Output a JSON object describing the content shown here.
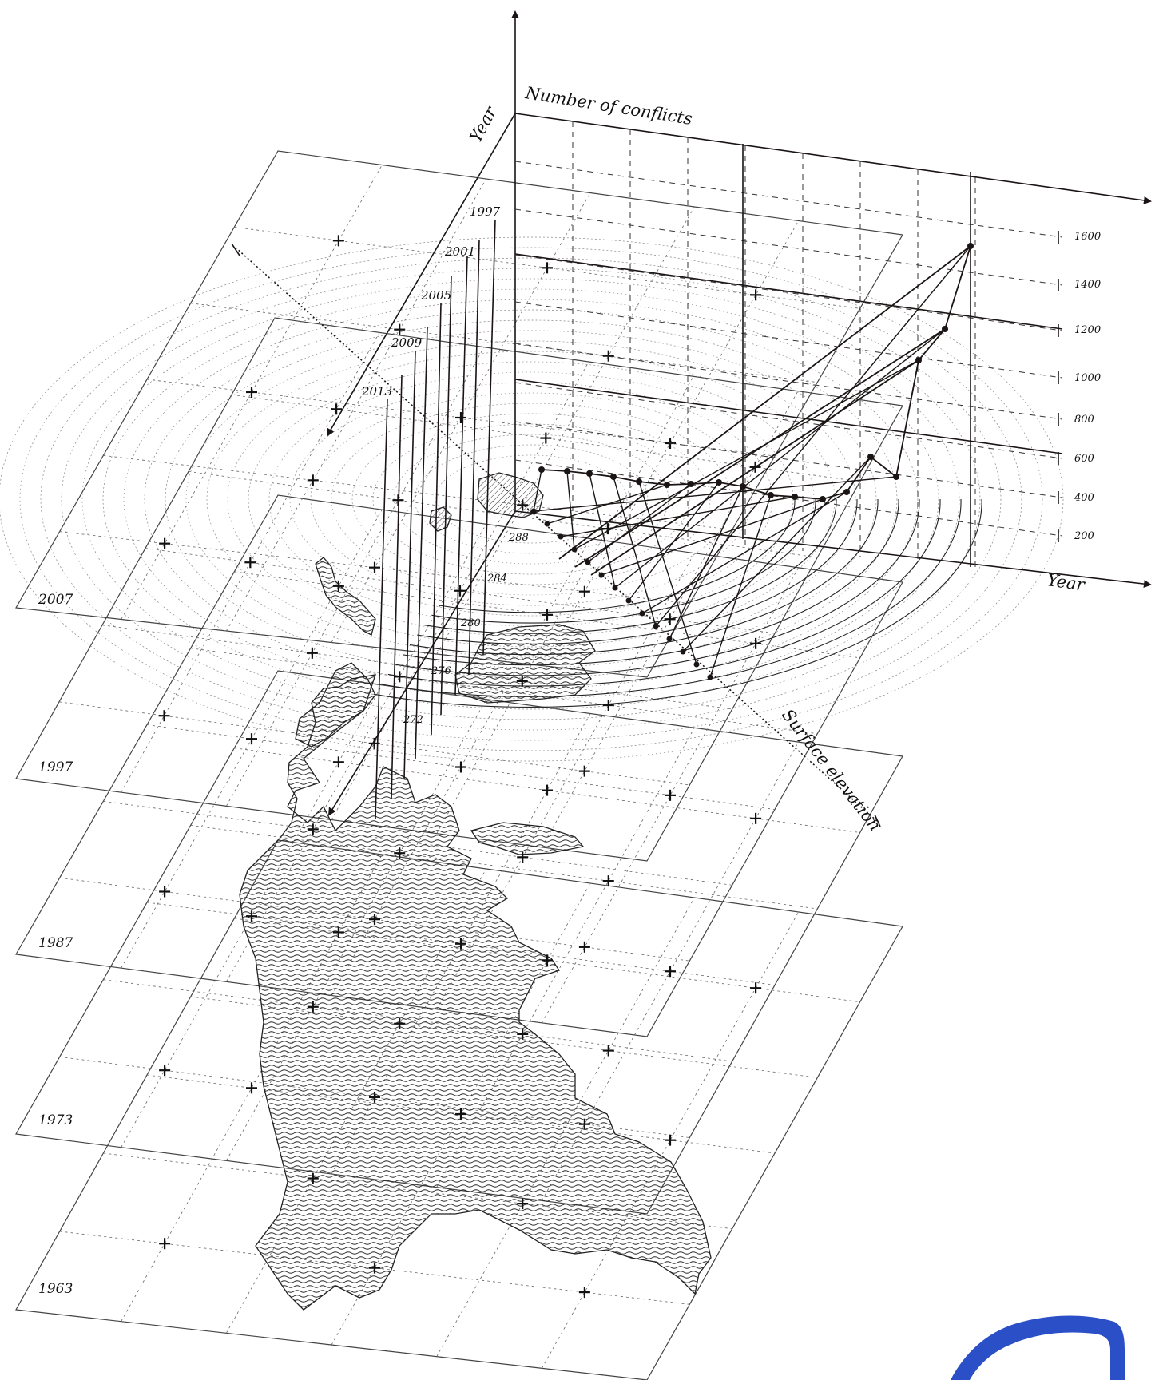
{
  "axes": {
    "conflicts_title": "Number of conflicts",
    "year_vertical_title": "Year",
    "year_horizontal_title": "Year",
    "surface_title": "Surface elevation"
  },
  "conflict_ticks": [
    "1600",
    "1400",
    "1200",
    "1000",
    "800",
    "600",
    "400",
    "200"
  ],
  "year_ticks": [
    "1997",
    "2001",
    "2005",
    "2009",
    "2013"
  ],
  "elevation_ticks": [
    "288",
    "284",
    "280",
    "276",
    "272"
  ],
  "planes": [
    "2007",
    "1997",
    "1987",
    "1973",
    "1963"
  ],
  "colors": {
    "ink": "#1a1414",
    "grid": "#555555",
    "halo": "#999999",
    "accent": "#2b4fc7"
  },
  "icons": [
    "corner-logo-icon"
  ]
}
